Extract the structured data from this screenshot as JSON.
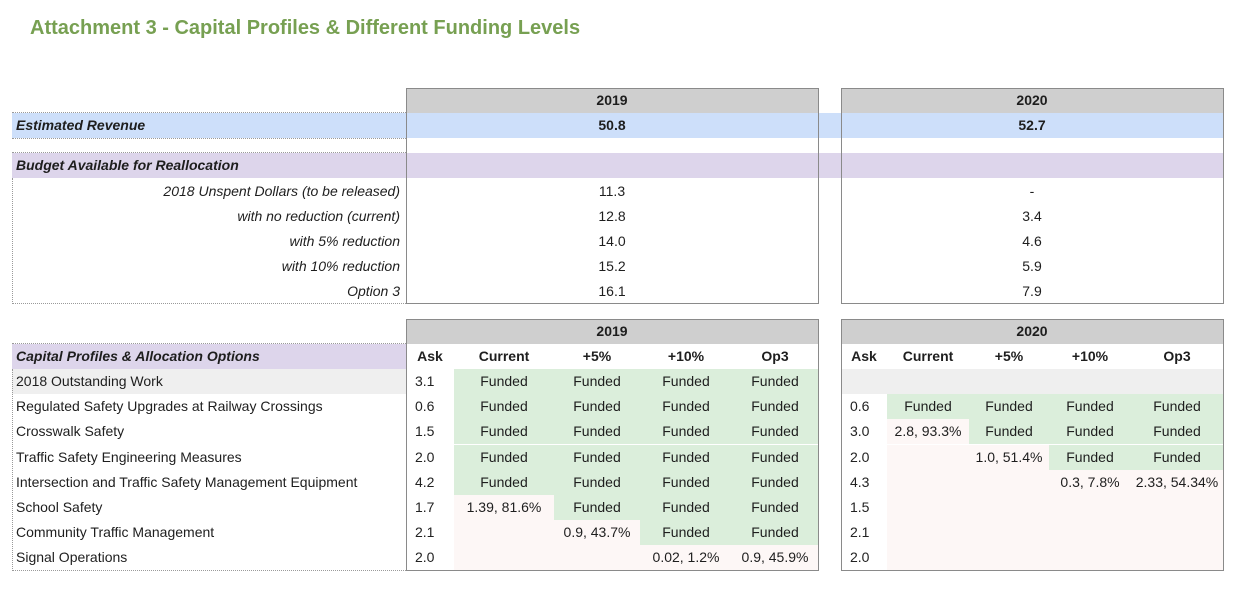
{
  "title": "Attachment 3 - Capital Profiles & Different Funding Levels",
  "years": [
    "2019",
    "2020"
  ],
  "estimated_revenue": {
    "label": "Estimated Revenue",
    "y2019": "50.8",
    "y2020": "52.7"
  },
  "budget": {
    "header": "Budget Available for Reallocation",
    "rows": [
      {
        "label": "2018 Unspent Dollars (to be released)",
        "y2019": "11.3",
        "y2020": "-"
      },
      {
        "label": "with no reduction (current)",
        "y2019": "12.8",
        "y2020": "3.4"
      },
      {
        "label": "with 5% reduction",
        "y2019": "14.0",
        "y2020": "4.6"
      },
      {
        "label": "with 10% reduction",
        "y2019": "15.2",
        "y2020": "5.9"
      },
      {
        "label": "Option 3",
        "y2019": "16.1",
        "y2020": "7.9"
      }
    ]
  },
  "capital": {
    "header": "Capital Profiles & Allocation Options",
    "columns": [
      "Ask",
      "Current",
      "+5%",
      "+10%",
      "Op3"
    ],
    "rows": [
      {
        "name": "2018 Outstanding Work",
        "a19": "3.1",
        "c19": [
          "Funded",
          "Funded",
          "Funded",
          "Funded"
        ],
        "a20": "",
        "c20": [
          "",
          "",
          "",
          ""
        ]
      },
      {
        "name": "Regulated Safety Upgrades at Railway Crossings",
        "a19": "0.6",
        "c19": [
          "Funded",
          "Funded",
          "Funded",
          "Funded"
        ],
        "a20": "0.6",
        "c20": [
          "Funded",
          "Funded",
          "Funded",
          "Funded"
        ]
      },
      {
        "name": "Crosswalk Safety",
        "a19": "1.5",
        "c19": [
          "Funded",
          "Funded",
          "Funded",
          "Funded"
        ],
        "a20": "3.0",
        "c20": [
          "2.8, 93.3%",
          "Funded",
          "Funded",
          "Funded"
        ]
      },
      {
        "name": "Traffic Safety Engineering Measures",
        "a19": "2.0",
        "c19": [
          "Funded",
          "Funded",
          "Funded",
          "Funded"
        ],
        "a20": "2.0",
        "c20": [
          "",
          "1.0, 51.4%",
          "Funded",
          "Funded"
        ]
      },
      {
        "name": "Intersection and Traffic Safety Management Equipment",
        "a19": "4.2",
        "c19": [
          "Funded",
          "Funded",
          "Funded",
          "Funded"
        ],
        "a20": "4.3",
        "c20": [
          "",
          "",
          "0.3, 7.8%",
          "2.33, 54.34%"
        ]
      },
      {
        "name": "School Safety",
        "a19": "1.7",
        "c19": [
          "1.39, 81.6%",
          "Funded",
          "Funded",
          "Funded"
        ],
        "a20": "1.5",
        "c20": [
          "",
          "",
          "",
          ""
        ]
      },
      {
        "name": "Community Traffic Management",
        "a19": "2.1",
        "c19": [
          "",
          "0.9, 43.7%",
          "Funded",
          "Funded"
        ],
        "a20": "2.1",
        "c20": [
          "",
          "",
          "",
          ""
        ]
      },
      {
        "name": "Signal Operations",
        "a19": "2.0",
        "c19": [
          "",
          "",
          "0.02, 1.2%",
          "0.9, 45.9%"
        ],
        "a20": "2.0",
        "c20": [
          "",
          "",
          "",
          ""
        ]
      }
    ]
  },
  "colors": {
    "title": "#77a052",
    "funded": "#dbeedb",
    "header_gray": "#cfcfcf",
    "revenue_blue": "#cddffa",
    "budget_purple": "#ddd5eb"
  }
}
